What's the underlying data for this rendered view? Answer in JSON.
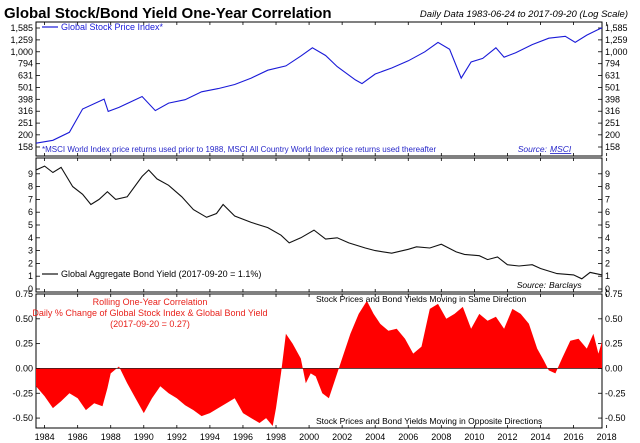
{
  "header": {
    "title": "Global Stock/Bond Yield One-Year Correlation",
    "subtitle": "Daily Data 1983-06-24 to 2017-09-20 (Log Scale)"
  },
  "colors": {
    "stock": "#1a1ad8",
    "bond": "#111111",
    "correlation": "#ff0000",
    "annotation_red": "#e8221c",
    "note_blue": "#2626c9"
  },
  "chart_data": [
    {
      "type": "line",
      "scale": "log",
      "legend": "Global Stock Price Index*",
      "legend_position": "top-left",
      "yticks": [
        "1,585",
        "1,259",
        "1,000",
        "794",
        "631",
        "501",
        "398",
        "316",
        "251",
        "200",
        "158"
      ],
      "ylim": [
        158,
        1585
      ],
      "note": "*MSCI World Index price returns used prior to 1988, MSCI All Country World Index price returns used thereafter",
      "source_label": "Source:",
      "source_name": "MSCI",
      "x": [
        1983.48,
        1984.5,
        1985.5,
        1986.3,
        1987.6,
        1987.85,
        1988.5,
        1989.9,
        1990.7,
        1991.5,
        1992.5,
        1993.5,
        1994.5,
        1995.5,
        1996.5,
        1997.5,
        1998.6,
        1999.5,
        2000.2,
        2001.0,
        2001.7,
        2002.8,
        2003.2,
        2004.0,
        2005.0,
        2006.0,
        2007.0,
        2007.8,
        2008.5,
        2009.2,
        2009.8,
        2010.5,
        2011.3,
        2011.8,
        2012.5,
        2013.5,
        2014.5,
        2015.5,
        2016.1,
        2016.8,
        2017.4,
        2017.72
      ],
      "y": [
        170,
        180,
        210,
        330,
        400,
        315,
        340,
        420,
        320,
        370,
        395,
        460,
        490,
        530,
        600,
        700,
        760,
        920,
        1080,
        930,
        750,
        580,
        540,
        650,
        730,
        840,
        1000,
        1200,
        1050,
        600,
        820,
        880,
        1080,
        900,
        980,
        1150,
        1300,
        1350,
        1200,
        1380,
        1520,
        1590
      ]
    },
    {
      "type": "line",
      "legend": "Global Aggregate Bond Yield (2017-09-20 = 1.1%)",
      "legend_position": "bottom-left",
      "yticks": [
        "9",
        "8",
        "7",
        "6",
        "5",
        "4",
        "3",
        "2",
        "1",
        "0"
      ],
      "ylim": [
        0,
        10
      ],
      "source_label": "Source:",
      "source_name": "Barclays",
      "x": [
        1983.48,
        1984.0,
        1984.5,
        1985.0,
        1985.7,
        1986.3,
        1986.8,
        1987.3,
        1987.8,
        1988.3,
        1989.0,
        1989.9,
        1990.3,
        1990.8,
        1991.5,
        1992.3,
        1993.0,
        1993.8,
        1994.4,
        1994.8,
        1995.5,
        1996.5,
        1997.5,
        1998.3,
        1998.8,
        1999.5,
        2000.3,
        2001.0,
        2001.7,
        2002.4,
        2003.4,
        2004.0,
        2005.0,
        2006.0,
        2006.5,
        2007.3,
        2008.0,
        2008.9,
        2009.4,
        2010.3,
        2010.8,
        2011.4,
        2012.0,
        2012.7,
        2013.5,
        2014.0,
        2015.0,
        2016.0,
        2016.5,
        2017.0,
        2017.72
      ],
      "y": [
        9.3,
        9.6,
        9.1,
        9.5,
        8.0,
        7.4,
        6.6,
        7.0,
        7.6,
        7.0,
        7.2,
        8.8,
        9.3,
        8.6,
        8.1,
        7.2,
        6.2,
        5.6,
        5.9,
        6.6,
        5.7,
        5.2,
        4.8,
        4.2,
        3.6,
        4.0,
        4.6,
        3.9,
        4.0,
        3.6,
        3.2,
        3.0,
        2.8,
        3.1,
        3.3,
        3.2,
        3.5,
        2.9,
        2.7,
        2.6,
        2.3,
        2.5,
        1.9,
        1.8,
        1.9,
        1.6,
        1.2,
        1.1,
        0.8,
        1.3,
        1.1
      ]
    },
    {
      "type": "area",
      "title": "Rolling One-Year Correlation",
      "subtitle": "Daily % Change of Global Stock Index & Global Bond Yield",
      "latest": "(2017-09-20 = 0.27)",
      "label_top": "Stock Prices and Bond Yields Moving in Same Direction",
      "label_bottom": "Stock Prices and Bond Yields Moving in Opposite Directions",
      "yticks": [
        "0.75",
        "0.50",
        "0.25",
        "0.00",
        "-0.25",
        "-0.50"
      ],
      "ylim": [
        -0.6,
        0.75
      ],
      "xticks": [
        "1984",
        "1986",
        "1988",
        "1990",
        "1992",
        "1994",
        "1996",
        "1998",
        "2000",
        "2002",
        "2004",
        "2006",
        "2008",
        "2010",
        "2012",
        "2014",
        "2016",
        "2018"
      ],
      "x": [
        1983.48,
        1984.0,
        1984.5,
        1985.0,
        1985.5,
        1986.0,
        1986.5,
        1987.0,
        1987.5,
        1987.8,
        1988.0,
        1988.5,
        1989.0,
        1989.5,
        1990.0,
        1990.5,
        1991.0,
        1991.5,
        1992.0,
        1992.5,
        1993.0,
        1993.5,
        1994.0,
        1994.5,
        1995.0,
        1995.5,
        1996.0,
        1996.5,
        1997.0,
        1997.4,
        1997.8,
        1998.0,
        1998.3,
        1998.6,
        1999.0,
        1999.5,
        1999.8,
        2000.1,
        2000.4,
        2000.8,
        2001.2,
        2001.6,
        2002.0,
        2002.5,
        2003.0,
        2003.5,
        2003.9,
        2004.3,
        2004.8,
        2005.3,
        2005.8,
        2006.3,
        2006.8,
        2007.3,
        2007.8,
        2008.3,
        2008.8,
        2009.3,
        2009.8,
        2010.3,
        2010.8,
        2011.3,
        2011.8,
        2012.3,
        2012.8,
        2013.3,
        2013.8,
        2014.2,
        2014.5,
        2014.9,
        2015.3,
        2015.8,
        2016.3,
        2016.8,
        2017.2,
        2017.5,
        2017.72
      ],
      "y": [
        -0.18,
        -0.28,
        -0.4,
        -0.33,
        -0.25,
        -0.3,
        -0.42,
        -0.35,
        -0.38,
        -0.2,
        -0.05,
        0.02,
        -0.15,
        -0.3,
        -0.45,
        -0.3,
        -0.18,
        -0.25,
        -0.3,
        -0.37,
        -0.42,
        -0.48,
        -0.45,
        -0.4,
        -0.35,
        -0.3,
        -0.45,
        -0.5,
        -0.55,
        -0.5,
        -0.58,
        -0.4,
        -0.05,
        0.35,
        0.25,
        0.1,
        -0.15,
        -0.05,
        -0.08,
        -0.25,
        -0.3,
        -0.1,
        0.1,
        0.35,
        0.55,
        0.68,
        0.55,
        0.45,
        0.38,
        0.4,
        0.3,
        0.15,
        0.22,
        0.6,
        0.65,
        0.5,
        0.55,
        0.62,
        0.4,
        0.55,
        0.48,
        0.52,
        0.4,
        0.6,
        0.55,
        0.45,
        0.2,
        0.08,
        -0.02,
        -0.05,
        0.1,
        0.28,
        0.3,
        0.2,
        0.35,
        0.15,
        0.27
      ]
    }
  ]
}
